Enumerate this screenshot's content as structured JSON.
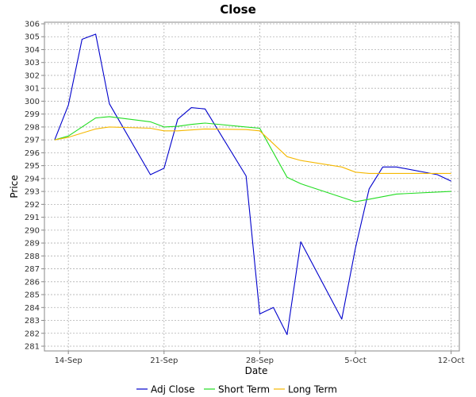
{
  "chart_data": {
    "type": "line",
    "title": "Close",
    "xlabel": "Date",
    "ylabel": "Price",
    "ylim": [
      281,
      306
    ],
    "y_tick_step": 1,
    "x_ticks": [
      {
        "label": "14-Sep",
        "day": 14
      },
      {
        "label": "21-Sep",
        "day": 21
      },
      {
        "label": "28-Sep",
        "day": 28
      },
      {
        "label": "5-Oct",
        "day": 35
      },
      {
        "label": "12-Oct",
        "day": 42
      }
    ],
    "xlim": [
      12.25,
      42.6
    ],
    "grid": true,
    "legend_position": "bottom",
    "series": [
      {
        "name": "Adj Close",
        "color": "#0000cc",
        "points": [
          {
            "day": 13,
            "y": 297.0
          },
          {
            "day": 14,
            "y": 299.7
          },
          {
            "day": 15,
            "y": 304.8
          },
          {
            "day": 16,
            "y": 305.2
          },
          {
            "day": 17,
            "y": 299.8
          },
          {
            "day": 20,
            "y": 294.3
          },
          {
            "day": 21,
            "y": 294.8
          },
          {
            "day": 22,
            "y": 298.6
          },
          {
            "day": 23,
            "y": 299.5
          },
          {
            "day": 24,
            "y": 299.4
          },
          {
            "day": 27,
            "y": 294.2
          },
          {
            "day": 28,
            "y": 283.5
          },
          {
            "day": 29,
            "y": 284.0
          },
          {
            "day": 30,
            "y": 281.9
          },
          {
            "day": 31,
            "y": 289.1
          },
          {
            "day": 34,
            "y": 283.1
          },
          {
            "day": 35,
            "y": 288.6
          },
          {
            "day": 36,
            "y": 293.2
          },
          {
            "day": 37,
            "y": 294.9
          },
          {
            "day": 38,
            "y": 294.9
          },
          {
            "day": 41,
            "y": 294.3
          },
          {
            "day": 42,
            "y": 293.8
          }
        ]
      },
      {
        "name": "Short Term",
        "color": "#22dd22",
        "points": [
          {
            "day": 13,
            "y": 297.0
          },
          {
            "day": 14,
            "y": 297.3
          },
          {
            "day": 16,
            "y": 298.7
          },
          {
            "day": 17,
            "y": 298.8
          },
          {
            "day": 20,
            "y": 298.4
          },
          {
            "day": 21,
            "y": 298.0
          },
          {
            "day": 22,
            "y": 298.05
          },
          {
            "day": 23,
            "y": 298.2
          },
          {
            "day": 24,
            "y": 298.3
          },
          {
            "day": 27,
            "y": 298.0
          },
          {
            "day": 28,
            "y": 297.9
          },
          {
            "day": 30,
            "y": 294.1
          },
          {
            "day": 31,
            "y": 293.6
          },
          {
            "day": 35,
            "y": 292.2
          },
          {
            "day": 36,
            "y": 292.4
          },
          {
            "day": 38,
            "y": 292.8
          },
          {
            "day": 42,
            "y": 293.0
          }
        ]
      },
      {
        "name": "Long Term",
        "color": "#f5b800",
        "points": [
          {
            "day": 13,
            "y": 297.0
          },
          {
            "day": 14,
            "y": 297.2
          },
          {
            "day": 16,
            "y": 297.85
          },
          {
            "day": 17,
            "y": 298.0
          },
          {
            "day": 20,
            "y": 297.9
          },
          {
            "day": 21,
            "y": 297.7
          },
          {
            "day": 22,
            "y": 297.7
          },
          {
            "day": 24,
            "y": 297.85
          },
          {
            "day": 27,
            "y": 297.8
          },
          {
            "day": 28,
            "y": 297.7
          },
          {
            "day": 30,
            "y": 295.7
          },
          {
            "day": 31,
            "y": 295.4
          },
          {
            "day": 34,
            "y": 294.9
          },
          {
            "day": 35,
            "y": 294.5
          },
          {
            "day": 36,
            "y": 294.4
          },
          {
            "day": 42,
            "y": 294.4
          }
        ]
      }
    ]
  }
}
